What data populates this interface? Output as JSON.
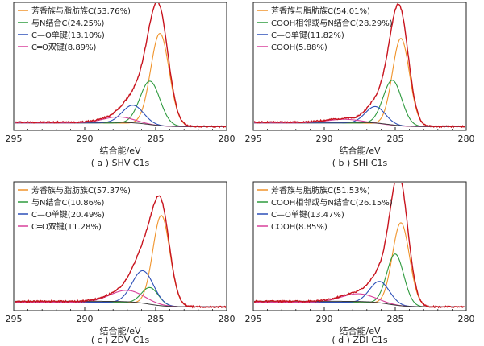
{
  "figure": {
    "panels": [
      {
        "id": "a",
        "caption": "( a ) SHV C1s",
        "xlabel": "结合能/eV",
        "legend": [
          {
            "label": "芳香族与脂肪族C(53.76%)",
            "color": "#f0932a"
          },
          {
            "label": "与N结合C(24.25%)",
            "color": "#2e9a3e"
          },
          {
            "label": "C—O单键(13.10%)",
            "color": "#2c4fb8"
          },
          {
            "label": "C═O双键(8.89%)",
            "color": "#d8409a"
          }
        ]
      },
      {
        "id": "b",
        "caption": "( b ) SHI C1s",
        "xlabel": "结合能/eV",
        "legend": [
          {
            "label": "芳香族与脂肪族C(54.01%)",
            "color": "#f0932a"
          },
          {
            "label": "COOH相邻或与N结合C(28.29%)",
            "color": "#2e9a3e"
          },
          {
            "label": "C—O单键(11.82%)",
            "color": "#2c4fb8"
          },
          {
            "label": "COOH(5.88%)",
            "color": "#d8409a"
          }
        ]
      },
      {
        "id": "c",
        "caption": "( c ) ZDV C1s",
        "xlabel": "结合能/eV",
        "legend": [
          {
            "label": "芳香族与脂肪族C(57.37%)",
            "color": "#f0932a"
          },
          {
            "label": "与N结合C(10.86%)",
            "color": "#2e9a3e"
          },
          {
            "label": "C—O单键(20.49%)",
            "color": "#2c4fb8"
          },
          {
            "label": "C═O双键(11.28%)",
            "color": "#d8409a"
          }
        ]
      },
      {
        "id": "d",
        "caption": "( d ) ZDI C1s",
        "xlabel": "结合能/eV",
        "legend": [
          {
            "label": "芳香族与脂肪族C(51.53%)",
            "color": "#f0932a"
          },
          {
            "label": "COOH相邻或与N结合C(26.15%)",
            "color": "#2e9a3e"
          },
          {
            "label": "C—O单键(13.47%)",
            "color": "#2c4fb8"
          },
          {
            "label": "COOH(8.85%)",
            "color": "#d8409a"
          }
        ]
      }
    ]
  },
  "chart_data": [
    {
      "type": "line",
      "title": "( a ) SHV C1s",
      "xlabel": "结合能/eV",
      "ylabel": "",
      "xlim": [
        295,
        280
      ],
      "x_reversed": true,
      "x_ticks": [
        295,
        290,
        285,
        280
      ],
      "grid": false,
      "legend_position": "top-left",
      "background_level": 0.04,
      "series": [
        {
          "name": "芳香族与脂肪族C(53.76%)",
          "color": "#f0932a",
          "center": 284.7,
          "height": 0.76,
          "width": 0.65
        },
        {
          "name": "与N结合C(24.25%)",
          "color": "#2e9a3e",
          "center": 285.4,
          "height": 0.36,
          "width": 0.7
        },
        {
          "name": "C—O单键(13.10%)",
          "color": "#2c4fb8",
          "center": 286.6,
          "height": 0.15,
          "width": 0.75
        },
        {
          "name": "C═O双键(8.89%)",
          "color": "#d8409a",
          "center": 287.6,
          "height": 0.05,
          "width": 1.1
        }
      ]
    },
    {
      "type": "line",
      "title": "( b ) SHI C1s",
      "xlabel": "结合能/eV",
      "ylabel": "",
      "xlim": [
        295,
        280
      ],
      "x_reversed": true,
      "x_ticks": [
        295,
        290,
        285,
        280
      ],
      "grid": false,
      "legend_position": "top-left",
      "background_level": 0.04,
      "series": [
        {
          "name": "芳香族与脂肪族C(54.01%)",
          "color": "#f0932a",
          "center": 284.6,
          "height": 0.72,
          "width": 0.6
        },
        {
          "name": "COOH相邻或与N结合C(28.29%)",
          "color": "#2e9a3e",
          "center": 285.2,
          "height": 0.37,
          "width": 0.65
        },
        {
          "name": "C—O单键(11.82%)",
          "color": "#2c4fb8",
          "center": 286.4,
          "height": 0.14,
          "width": 0.7
        },
        {
          "name": "COOH(5.88%)",
          "color": "#d8409a",
          "center": 288.6,
          "height": 0.03,
          "width": 1.2
        }
      ]
    },
    {
      "type": "line",
      "title": "( c ) ZDV C1s",
      "xlabel": "结合能/eV",
      "ylabel": "",
      "xlim": [
        295,
        280
      ],
      "x_reversed": true,
      "x_ticks": [
        295,
        290,
        285,
        280
      ],
      "grid": false,
      "legend_position": "top-left",
      "background_level": 0.05,
      "series": [
        {
          "name": "芳香族与脂肪族C(57.37%)",
          "color": "#f0932a",
          "center": 284.6,
          "height": 0.74,
          "width": 0.6
        },
        {
          "name": "与N结合C(10.86%)",
          "color": "#2e9a3e",
          "center": 285.4,
          "height": 0.14,
          "width": 0.6
        },
        {
          "name": "C—O单键(20.49%)",
          "color": "#2c4fb8",
          "center": 285.9,
          "height": 0.27,
          "width": 0.75
        },
        {
          "name": "C═O双键(11.28%)",
          "color": "#d8409a",
          "center": 287.0,
          "height": 0.1,
          "width": 1.2
        }
      ]
    },
    {
      "type": "line",
      "title": "( d ) ZDI C1s",
      "xlabel": "结合能/eV",
      "ylabel": "",
      "xlim": [
        295,
        280
      ],
      "x_reversed": true,
      "x_ticks": [
        295,
        290,
        285,
        280
      ],
      "grid": false,
      "legend_position": "top-left",
      "background_level": 0.05,
      "series": [
        {
          "name": "芳香族与脂肪族C(51.53%)",
          "color": "#f0932a",
          "center": 284.6,
          "height": 0.68,
          "width": 0.6
        },
        {
          "name": "COOH相邻或与N结合C(26.15%)",
          "color": "#2e9a3e",
          "center": 285.0,
          "height": 0.42,
          "width": 0.6
        },
        {
          "name": "C—O单键(13.47%)",
          "color": "#2c4fb8",
          "center": 286.1,
          "height": 0.18,
          "width": 0.7
        },
        {
          "name": "COOH(8.85%)",
          "color": "#d8409a",
          "center": 287.6,
          "height": 0.07,
          "width": 1.2
        }
      ]
    }
  ]
}
